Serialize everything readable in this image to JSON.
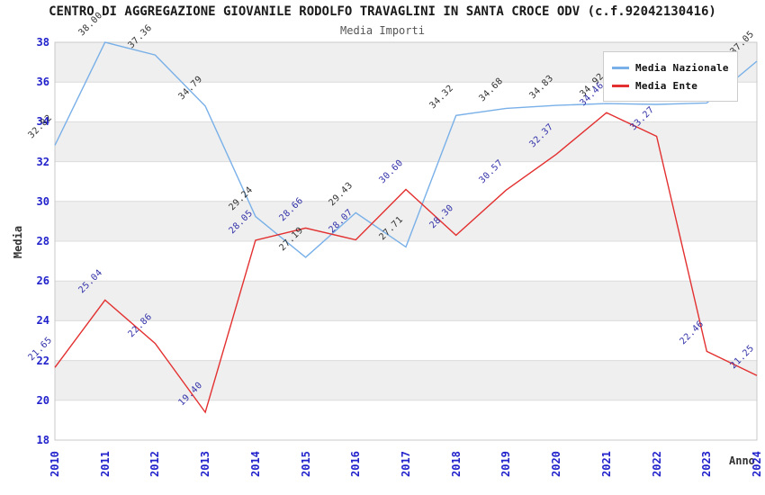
{
  "chart_data": {
    "type": "line",
    "title": "CENTRO DI AGGREGAZIONE GIOVANILE RODOLFO TRAVAGLINI IN SANTA CROCE ODV (c.f.92042130416)",
    "subtitle": "Media Importi",
    "xlabel": "Anno",
    "ylabel": "Media",
    "x": [
      2010,
      2011,
      2012,
      2013,
      2014,
      2015,
      2016,
      2017,
      2018,
      2019,
      2020,
      2021,
      2022,
      2023,
      2024
    ],
    "ylim": [
      18,
      38
    ],
    "ytick_step": 2,
    "grid": "horizontal-bands-alternating",
    "band_color": "#efefef",
    "gridline_color": "#dcdcdc",
    "border_color": "#c8c8c8",
    "axis_tick_color": "#2222cc",
    "legend_position": "top-right",
    "series": [
      {
        "name": "Media Nazionale",
        "color": "#79b0e8",
        "label_color": "#333333",
        "values": [
          32.82,
          38.0,
          37.36,
          34.79,
          29.24,
          27.19,
          29.43,
          27.71,
          34.32,
          34.68,
          34.83,
          34.92,
          34.88,
          34.95,
          37.05
        ]
      },
      {
        "name": "Media Ente",
        "color": "#e33030",
        "label_color": "#3333aa",
        "values": [
          21.65,
          25.04,
          22.86,
          19.4,
          28.05,
          28.66,
          28.07,
          30.6,
          28.3,
          30.57,
          32.37,
          34.46,
          33.27,
          22.46,
          21.25
        ]
      }
    ]
  }
}
